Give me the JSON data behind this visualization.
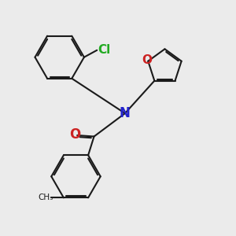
{
  "bg_color": "#ebebeb",
  "bond_color": "#1a1a1a",
  "bond_lw": 1.5,
  "N_color": "#2222cc",
  "O_color": "#cc2222",
  "Cl_color": "#22aa22",
  "font_size": 11,
  "fig_w": 3.0,
  "fig_h": 3.0,
  "dpi": 100,
  "xlim": [
    0,
    10
  ],
  "ylim": [
    0,
    10
  ]
}
